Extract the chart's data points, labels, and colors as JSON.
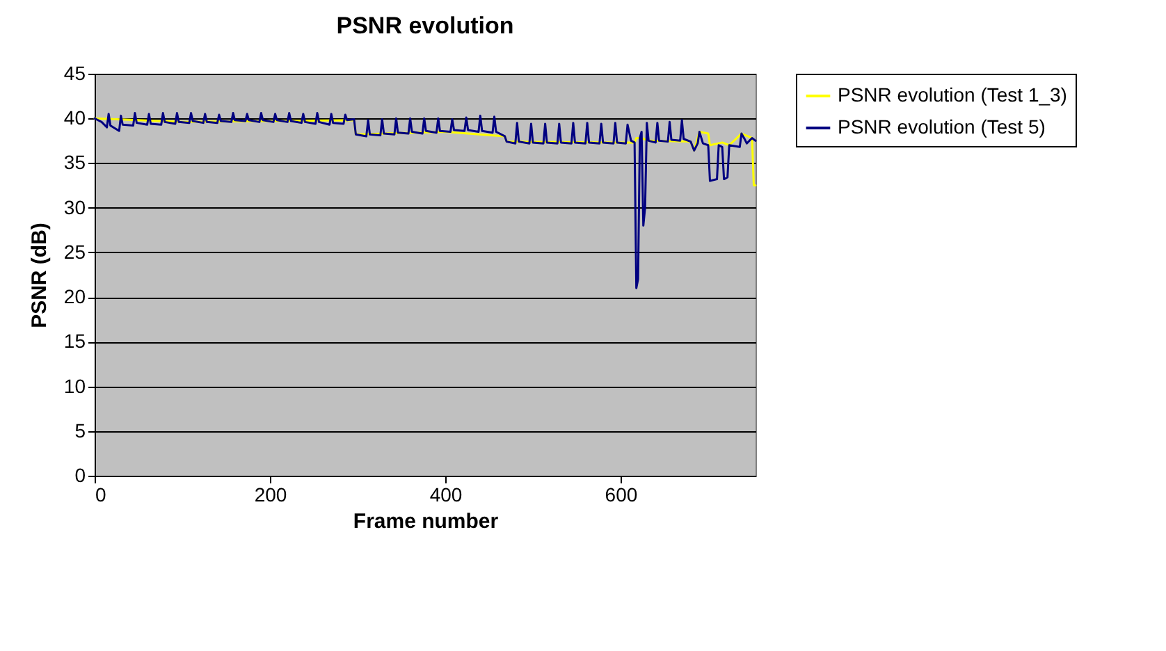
{
  "chart_data": {
    "type": "line",
    "title": "PSNR evolution",
    "xlabel": "Frame number",
    "ylabel": "PSNR (dB)",
    "xlim": [
      0,
      754
    ],
    "xticks": [
      0,
      200,
      400,
      600
    ],
    "ylim": [
      0,
      45
    ],
    "yticks": [
      0,
      5,
      10,
      15,
      20,
      25,
      30,
      35,
      40,
      45
    ],
    "grid": "y",
    "legend": "right",
    "line_style": "solid",
    "marker": "none",
    "series": [
      {
        "name": "PSNR evolution (Test 1_3)",
        "color": "#ffff00",
        "x": [
          0,
          100,
          200,
          296,
          298,
          400,
          468,
          470,
          600,
          616,
          618,
          624,
          632,
          680,
          684,
          690,
          700,
          702,
          716,
          724,
          738,
          750,
          752,
          754
        ],
        "values": [
          40,
          39.6,
          39.7,
          39.8,
          38.2,
          38.5,
          38,
          37.4,
          37.3,
          37.3,
          37.8,
          37.8,
          37.5,
          37.4,
          36.4,
          38.5,
          38.3,
          37,
          37.3,
          37,
          38.3,
          37.8,
          32.5,
          32.5
        ]
      },
      {
        "name": "PSNR evolution (Test 5)",
        "color": "#000080",
        "x": [
          0,
          8,
          14,
          16,
          18,
          28,
          30,
          32,
          44,
          46,
          48,
          60,
          62,
          64,
          76,
          78,
          80,
          92,
          94,
          96,
          108,
          110,
          112,
          124,
          126,
          128,
          140,
          142,
          144,
          156,
          158,
          160,
          172,
          174,
          176,
          188,
          190,
          192,
          204,
          206,
          208,
          220,
          222,
          224,
          236,
          238,
          240,
          252,
          254,
          256,
          268,
          270,
          272,
          284,
          286,
          288,
          296,
          298,
          310,
          312,
          314,
          326,
          328,
          330,
          342,
          344,
          346,
          358,
          360,
          362,
          374,
          376,
          378,
          390,
          392,
          394,
          406,
          408,
          410,
          422,
          424,
          426,
          438,
          440,
          442,
          454,
          456,
          458,
          468,
          470,
          480,
          482,
          484,
          496,
          498,
          500,
          512,
          514,
          516,
          528,
          530,
          532,
          544,
          546,
          548,
          560,
          562,
          564,
          576,
          578,
          580,
          592,
          594,
          596,
          606,
          608,
          612,
          616,
          618,
          620,
          622,
          624,
          626,
          628,
          630,
          632,
          640,
          642,
          644,
          654,
          656,
          658,
          668,
          670,
          672,
          680,
          684,
          688,
          690,
          694,
          700,
          702,
          710,
          712,
          716,
          718,
          722,
          724,
          736,
          738,
          742,
          744,
          750,
          754
        ],
        "values": [
          40,
          39.6,
          39,
          40.5,
          39.2,
          38.6,
          40.3,
          39.3,
          39.2,
          40.6,
          39.5,
          39.3,
          40.5,
          39.4,
          39.3,
          40.6,
          39.6,
          39.4,
          40.6,
          39.6,
          39.5,
          40.6,
          39.7,
          39.5,
          40.5,
          39.6,
          39.5,
          40.4,
          39.7,
          39.6,
          40.6,
          39.8,
          39.7,
          40.5,
          39.8,
          39.6,
          40.6,
          39.8,
          39.6,
          40.5,
          39.8,
          39.6,
          40.6,
          39.7,
          39.5,
          40.5,
          39.6,
          39.4,
          40.6,
          39.6,
          39.3,
          40.5,
          39.5,
          39.4,
          40.4,
          39.8,
          39.9,
          38.2,
          38,
          39.8,
          38.2,
          38.1,
          39.9,
          38.3,
          38.2,
          40,
          38.4,
          38.3,
          40,
          38.5,
          38.3,
          40,
          38.6,
          38.4,
          40,
          38.6,
          38.5,
          39.9,
          38.7,
          38.6,
          40.1,
          38.7,
          38.5,
          40.3,
          38.6,
          38.4,
          40.2,
          38.5,
          38,
          37.4,
          37.2,
          39.5,
          37.4,
          37.2,
          39.4,
          37.3,
          37.2,
          39.4,
          37.3,
          37.2,
          39.4,
          37.3,
          37.2,
          39.5,
          37.3,
          37.2,
          39.5,
          37.3,
          37.2,
          39.4,
          37.3,
          37.2,
          39.5,
          37.3,
          37.2,
          39.3,
          37.5,
          37.3,
          21,
          22,
          37.8,
          38.5,
          28,
          30,
          39.5,
          37.5,
          37.3,
          39.5,
          37.5,
          37.4,
          39.6,
          37.6,
          37.5,
          39.8,
          37.7,
          37.4,
          36.4,
          37.2,
          38.5,
          37.2,
          37,
          33,
          33.2,
          37,
          36.8,
          33.2,
          33.4,
          37,
          36.8,
          38.3,
          37.6,
          37.2,
          37.8,
          37.5
        ]
      }
    ]
  }
}
